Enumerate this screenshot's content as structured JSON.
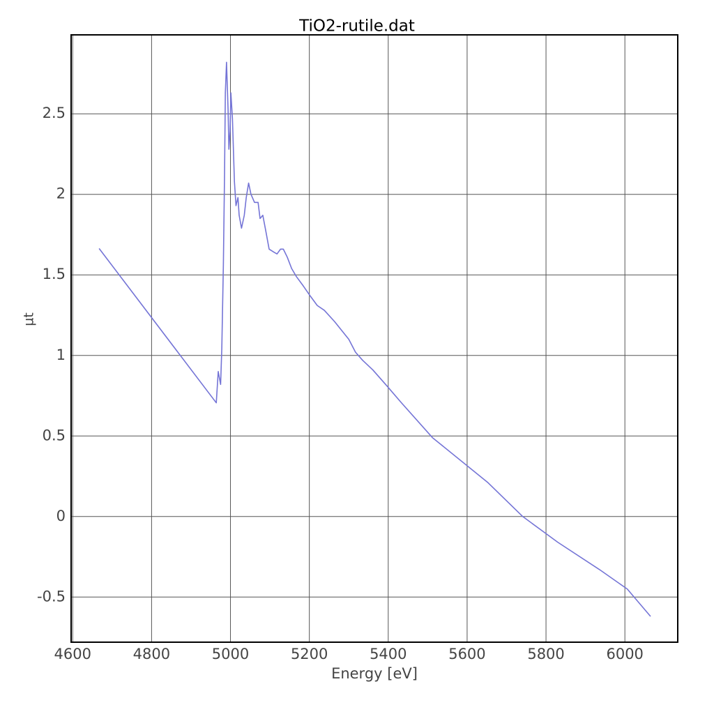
{
  "chart_data": {
    "type": "line",
    "title": "TiO2-rutile.dat",
    "xlabel": "Energy [eV]",
    "ylabel": "µt",
    "color": "#7474d6",
    "x": [
      4667,
      4964,
      4969,
      4975,
      4978,
      4982,
      4985,
      4987,
      4990,
      4994,
      4996,
      4999,
      5001,
      5005,
      5010,
      5014,
      5019,
      5022,
      5028,
      5035,
      5040,
      5046,
      5052,
      5061,
      5070,
      5075,
      5082,
      5089,
      5098,
      5111,
      5118,
      5127,
      5134,
      5144,
      5155,
      5167,
      5185,
      5202,
      5220,
      5238,
      5264,
      5300,
      5317,
      5335,
      5361,
      5397,
      5432,
      5512,
      5653,
      5741,
      5830,
      5936,
      6006,
      6065
    ],
    "values": [
      1.664,
      0.706,
      0.9,
      0.82,
      1.04,
      1.56,
      2.13,
      2.63,
      2.82,
      2.52,
      2.28,
      2.39,
      2.63,
      2.47,
      2.08,
      1.93,
      1.98,
      1.87,
      1.79,
      1.87,
      1.98,
      2.07,
      2.0,
      1.95,
      1.95,
      1.85,
      1.87,
      1.78,
      1.66,
      1.64,
      1.63,
      1.66,
      1.66,
      1.61,
      1.54,
      1.49,
      1.43,
      1.37,
      1.31,
      1.28,
      1.21,
      1.1,
      1.02,
      0.97,
      0.91,
      0.81,
      0.71,
      0.49,
      0.21,
      0.0,
      -0.16,
      -0.33,
      -0.45,
      -0.62
    ],
    "xlim": [
      4596,
      6134
    ],
    "ylim": [
      -0.78,
      2.99
    ],
    "xticks": [
      4600,
      4800,
      5000,
      5200,
      5400,
      5600,
      5800,
      6000
    ],
    "yticks": [
      -0.5,
      0,
      0.5,
      1,
      1.5,
      2,
      2.5
    ],
    "grid": true
  }
}
